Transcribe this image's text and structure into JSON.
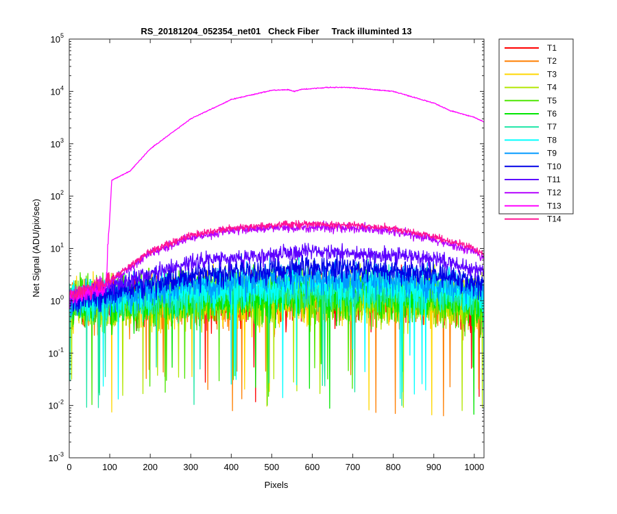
{
  "chart_data": {
    "type": "line",
    "title": "RS_20181204_052354_net01   Check Fiber     Track illuminted 13",
    "xlabel": "Pixels",
    "ylabel": "Net Signal (ADU/pix/sec)",
    "xlim": [
      0,
      1024
    ],
    "ylim": [
      0.001,
      100000
    ],
    "yscale": "log",
    "grid": false,
    "legend_position": "outside-right-top",
    "x_ticks": [
      0,
      100,
      200,
      300,
      400,
      500,
      600,
      700,
      800,
      900,
      1000
    ],
    "y_ticks": [
      {
        "base": "10",
        "exp": "-3",
        "value": 0.001
      },
      {
        "base": "10",
        "exp": "-2",
        "value": 0.01
      },
      {
        "base": "10",
        "exp": "-1",
        "value": 0.1
      },
      {
        "base": "10",
        "exp": "0",
        "value": 1
      },
      {
        "base": "10",
        "exp": "1",
        "value": 10
      },
      {
        "base": "10",
        "exp": "2",
        "value": 100
      },
      {
        "base": "10",
        "exp": "3",
        "value": 1000
      },
      {
        "base": "10",
        "exp": "4",
        "value": 10000
      },
      {
        "base": "10",
        "exp": "5",
        "value": 100000
      }
    ],
    "series": [
      {
        "name": "T1",
        "color": "#ff0000",
        "level": [
          [
            0,
            1.0
          ],
          [
            100,
            0.9
          ],
          [
            300,
            1.0
          ],
          [
            600,
            1.1
          ],
          [
            900,
            1.0
          ],
          [
            1024,
            0.8
          ]
        ],
        "noise": 1.1,
        "dips": true
      },
      {
        "name": "T2",
        "color": "#ff7f00",
        "level": [
          [
            0,
            1.0
          ],
          [
            100,
            0.9
          ],
          [
            300,
            1.0
          ],
          [
            600,
            1.1
          ],
          [
            900,
            1.0
          ],
          [
            1024,
            0.8
          ]
        ],
        "noise": 1.1,
        "dips": true
      },
      {
        "name": "T3",
        "color": "#ffd700",
        "level": [
          [
            0,
            1.0
          ],
          [
            100,
            0.9
          ],
          [
            300,
            1.0
          ],
          [
            600,
            1.1
          ],
          [
            900,
            1.0
          ],
          [
            1024,
            0.8
          ]
        ],
        "noise": 1.1,
        "dips": true
      },
      {
        "name": "T4",
        "color": "#b2e600",
        "level": [
          [
            0,
            1.0
          ],
          [
            100,
            0.9
          ],
          [
            300,
            1.0
          ],
          [
            600,
            1.2
          ],
          [
            900,
            1.0
          ],
          [
            1024,
            0.8
          ]
        ],
        "noise": 1.1,
        "dips": true
      },
      {
        "name": "T5",
        "color": "#4ce600",
        "level": [
          [
            0,
            1.0
          ],
          [
            100,
            0.9
          ],
          [
            300,
            1.1
          ],
          [
            600,
            1.3
          ],
          [
            900,
            1.1
          ],
          [
            1024,
            0.9
          ]
        ],
        "noise": 1.1,
        "dips": true
      },
      {
        "name": "T6",
        "color": "#00e600",
        "level": [
          [
            0,
            1.0
          ],
          [
            100,
            0.9
          ],
          [
            300,
            1.1
          ],
          [
            600,
            1.4
          ],
          [
            900,
            1.2
          ],
          [
            1024,
            0.9
          ]
        ],
        "noise": 1.0,
        "dips": true
      },
      {
        "name": "T7",
        "color": "#19e5a5",
        "level": [
          [
            0,
            1.0
          ],
          [
            100,
            1.0
          ],
          [
            300,
            1.3
          ],
          [
            600,
            1.7
          ],
          [
            900,
            1.4
          ],
          [
            1024,
            1.0
          ]
        ],
        "noise": 0.9,
        "dips": true
      },
      {
        "name": "T8",
        "color": "#00ffff",
        "level": [
          [
            0,
            1.0
          ],
          [
            100,
            1.1
          ],
          [
            300,
            1.6
          ],
          [
            600,
            2.2
          ],
          [
            900,
            1.8
          ],
          [
            1024,
            1.2
          ]
        ],
        "noise": 0.8,
        "dips": true
      },
      {
        "name": "T9",
        "color": "#0099ff",
        "level": [
          [
            0,
            1.0
          ],
          [
            100,
            1.2
          ],
          [
            300,
            2.0
          ],
          [
            600,
            2.8
          ],
          [
            900,
            2.2
          ],
          [
            1024,
            1.4
          ]
        ],
        "noise": 0.7,
        "dips": false
      },
      {
        "name": "T10",
        "color": "#0000e6",
        "level": [
          [
            0,
            1.0
          ],
          [
            100,
            1.4
          ],
          [
            300,
            3.0
          ],
          [
            600,
            4.5
          ],
          [
            900,
            3.4
          ],
          [
            1024,
            2.0
          ]
        ],
        "noise": 0.55,
        "dips": false
      },
      {
        "name": "T11",
        "color": "#5e00ff",
        "level": [
          [
            0,
            1.1
          ],
          [
            100,
            1.8
          ],
          [
            300,
            5.5
          ],
          [
            600,
            8.8
          ],
          [
            900,
            6.5
          ],
          [
            1024,
            3.5
          ]
        ],
        "noise": 0.35,
        "dips": false
      },
      {
        "name": "T12",
        "color": "#b400ff",
        "level": [
          [
            0,
            1.1
          ],
          [
            100,
            2.2
          ],
          [
            200,
            8
          ],
          [
            300,
            16
          ],
          [
            400,
            22
          ],
          [
            500,
            25
          ],
          [
            600,
            26
          ],
          [
            700,
            25
          ],
          [
            800,
            21
          ],
          [
            900,
            15
          ],
          [
            1000,
            9
          ],
          [
            1024,
            6.5
          ]
        ],
        "noise": 0.2,
        "dips": false
      },
      {
        "name": "T13",
        "color": "#ff00ff",
        "level": [
          [
            0,
            1.2
          ],
          [
            90,
            1.6
          ],
          [
            105,
            200
          ],
          [
            150,
            300
          ],
          [
            200,
            800
          ],
          [
            300,
            3000
          ],
          [
            400,
            7000
          ],
          [
            500,
            10500
          ],
          [
            540,
            10800
          ],
          [
            555,
            10000
          ],
          [
            575,
            11000
          ],
          [
            650,
            12000
          ],
          [
            700,
            11800
          ],
          [
            800,
            10000
          ],
          [
            900,
            6000
          ],
          [
            940,
            4300
          ],
          [
            1000,
            3200
          ],
          [
            1024,
            2600
          ]
        ],
        "noise": 0.02,
        "dips": false
      },
      {
        "name": "T14",
        "color": "#ff1493",
        "level": [
          [
            0,
            1.2
          ],
          [
            100,
            2.4
          ],
          [
            200,
            9
          ],
          [
            300,
            18
          ],
          [
            400,
            24
          ],
          [
            500,
            28
          ],
          [
            600,
            29
          ],
          [
            700,
            28
          ],
          [
            800,
            24
          ],
          [
            900,
            17
          ],
          [
            1000,
            10
          ],
          [
            1024,
            7.5
          ]
        ],
        "noise": 0.15,
        "dips": false
      }
    ]
  }
}
